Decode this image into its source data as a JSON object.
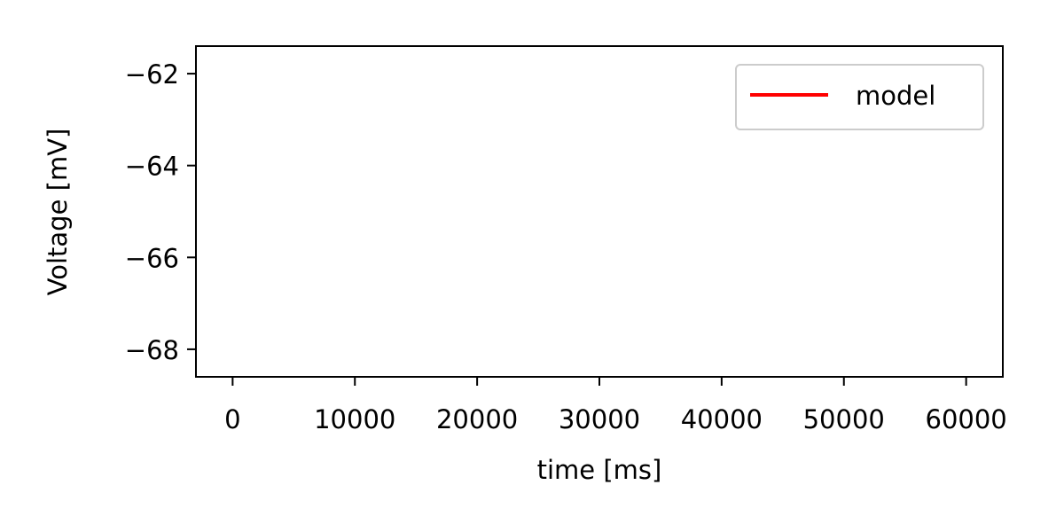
{
  "chart_data": {
    "type": "line",
    "title": "",
    "xlabel": "time [ms]",
    "ylabel": "Voltage [mV]",
    "xlim": [
      -3000,
      63000
    ],
    "ylim": [
      -68.6,
      -61.4
    ],
    "x_ticks": [
      0,
      10000,
      20000,
      30000,
      40000,
      50000,
      60000
    ],
    "x_tick_labels": [
      "0",
      "10000",
      "20000",
      "30000",
      "40000",
      "50000",
      "60000"
    ],
    "y_ticks": [
      -62,
      -64,
      -66,
      -68
    ],
    "y_tick_labels": [
      "−62",
      "−64",
      "−66",
      "−68"
    ],
    "grid": false,
    "legend_position": "top-right",
    "series": [
      {
        "name": "model",
        "color": "#ff0000",
        "x": [],
        "y": []
      }
    ]
  }
}
